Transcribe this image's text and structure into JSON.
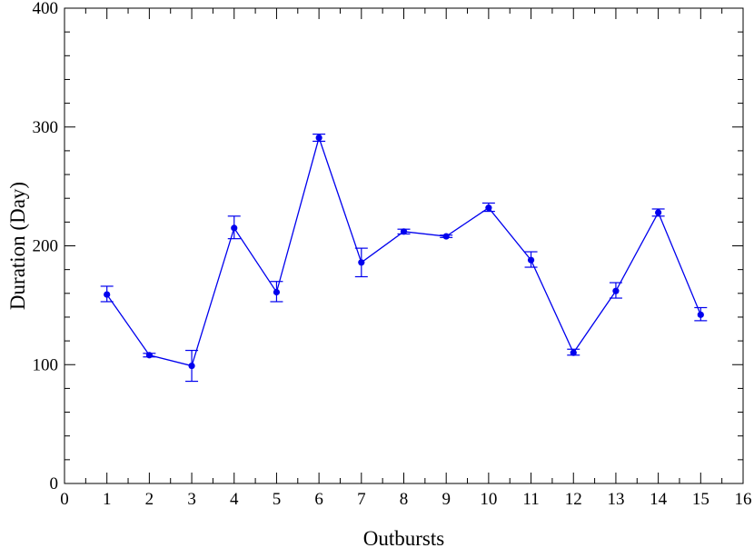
{
  "chart_data": {
    "type": "line",
    "title": "",
    "xlabel": "Outbursts",
    "ylabel": "Duration (Day)",
    "xlim": [
      0,
      16
    ],
    "ylim": [
      0,
      400
    ],
    "xticks": [
      0,
      1,
      2,
      3,
      4,
      5,
      6,
      7,
      8,
      9,
      10,
      11,
      12,
      13,
      14,
      15,
      16
    ],
    "yticks": [
      0,
      100,
      200,
      300,
      400
    ],
    "grid": false,
    "legend": "none",
    "series": [
      {
        "color": "#0000ee",
        "marker": "circle",
        "error_bars": true,
        "points": [
          {
            "x": 1,
            "y": 159,
            "err_low": 6,
            "err_high": 7
          },
          {
            "x": 2,
            "y": 108,
            "err_low": 1.5,
            "err_high": 1.5
          },
          {
            "x": 3,
            "y": 99,
            "err_low": 13,
            "err_high": 13
          },
          {
            "x": 4,
            "y": 215,
            "err_low": 9,
            "err_high": 10
          },
          {
            "x": 5,
            "y": 161,
            "err_low": 8,
            "err_high": 9
          },
          {
            "x": 6,
            "y": 291,
            "err_low": 3,
            "err_high": 3
          },
          {
            "x": 7,
            "y": 186,
            "err_low": 12,
            "err_high": 12
          },
          {
            "x": 8,
            "y": 212,
            "err_low": 2,
            "err_high": 2
          },
          {
            "x": 9,
            "y": 208,
            "err_low": 1,
            "err_high": 1
          },
          {
            "x": 10,
            "y": 232,
            "err_low": 3,
            "err_high": 4
          },
          {
            "x": 11,
            "y": 188,
            "err_low": 6,
            "err_high": 7
          },
          {
            "x": 12,
            "y": 110,
            "err_low": 2,
            "err_high": 3
          },
          {
            "x": 13,
            "y": 162,
            "err_low": 6,
            "err_high": 7
          },
          {
            "x": 14,
            "y": 228,
            "err_low": 3,
            "err_high": 3
          },
          {
            "x": 15,
            "y": 142,
            "err_low": 5,
            "err_high": 6
          }
        ]
      }
    ]
  }
}
